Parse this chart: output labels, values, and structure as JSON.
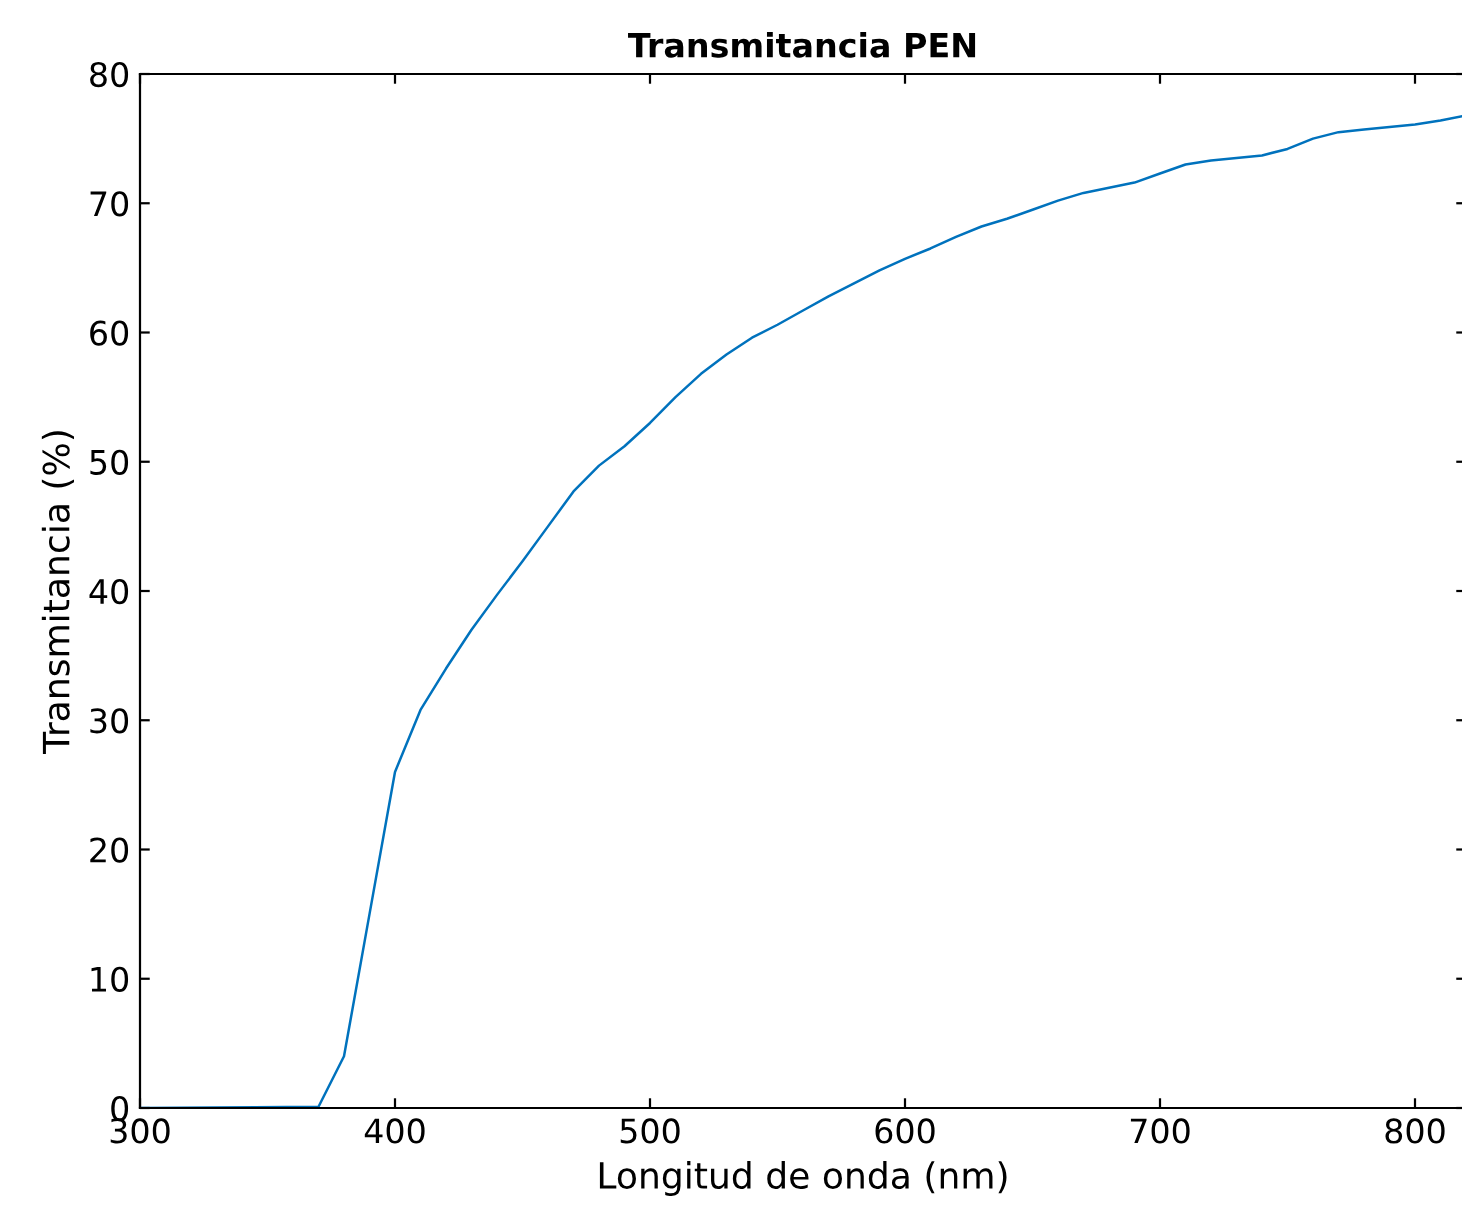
{
  "chart_data": {
    "type": "line",
    "title": "Transmitancia PEN",
    "xlabel": "Longitud de onda (nm)",
    "ylabel": "Transmitancia (%)",
    "x": [
      300,
      370,
      380,
      390,
      400,
      410,
      420,
      430,
      440,
      450,
      460,
      470,
      480,
      490,
      500,
      510,
      520,
      530,
      540,
      550,
      560,
      570,
      580,
      590,
      600,
      610,
      620,
      630,
      640,
      650,
      660,
      670,
      680,
      690,
      700,
      710,
      720,
      730,
      740,
      750,
      760,
      770,
      780,
      790,
      800,
      810,
      820
    ],
    "series": [
      {
        "color": "#0072bd",
        "values": [
          0,
          0.1,
          4,
          15,
          26,
          30.8,
          34,
          37,
          39.7,
          42.3,
          45,
          47.7,
          49.7,
          51.2,
          53,
          55,
          56.8,
          58.3,
          59.6,
          60.6,
          61.7,
          62.8,
          63.8,
          64.8,
          65.7,
          66.5,
          67.4,
          68.2,
          68.8,
          69.5,
          70.2,
          70.8,
          71.2,
          71.6,
          72.3,
          73,
          73.3,
          73.5,
          73.7,
          74.2,
          75,
          75.5,
          75.7,
          75.9,
          76.1,
          76.4,
          76.8
        ]
      }
    ],
    "xlim": [
      300,
      820
    ],
    "xticks": [
      300,
      400,
      500,
      600,
      700,
      800
    ],
    "ylim": [
      0,
      80
    ],
    "yticks": [
      0,
      10,
      20,
      30,
      40,
      50,
      60,
      70,
      80
    ],
    "grid": false,
    "legend": false,
    "marker": "none",
    "line_style": "solid"
  }
}
